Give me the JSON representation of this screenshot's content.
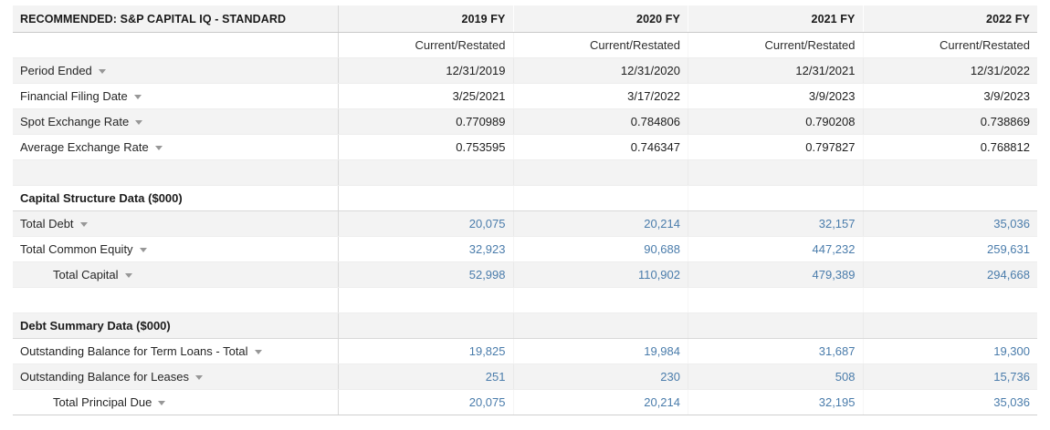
{
  "colors": {
    "value_blue": "#4a7cab",
    "stripe_gray": "#f3f3f3",
    "divider_gray": "#d9d9d9",
    "text_dark": "#1e1e1e"
  },
  "table": {
    "title": "RECOMMENDED: S&P CAPITAL IQ - STANDARD",
    "columns": [
      "2019 FY",
      "2020 FY",
      "2021 FY",
      "2022 FY"
    ],
    "subheader": "Current/Restated",
    "rows": [
      {
        "type": "data",
        "label": "Period Ended",
        "dropdown": true,
        "indent": false,
        "value_style": "dark",
        "values": [
          "12/31/2019",
          "12/31/2020",
          "12/31/2021",
          "12/31/2022"
        ]
      },
      {
        "type": "data",
        "label": "Financial Filing Date",
        "dropdown": true,
        "indent": false,
        "value_style": "dark",
        "values": [
          "3/25/2021",
          "3/17/2022",
          "3/9/2023",
          "3/9/2023"
        ]
      },
      {
        "type": "data",
        "label": "Spot Exchange Rate",
        "dropdown": true,
        "indent": false,
        "value_style": "dark",
        "values": [
          "0.770989",
          "0.784806",
          "0.790208",
          "0.738869"
        ]
      },
      {
        "type": "data",
        "label": "Average Exchange Rate",
        "dropdown": true,
        "indent": false,
        "value_style": "dark",
        "values": [
          "0.753595",
          "0.746347",
          "0.797827",
          "0.768812"
        ]
      },
      {
        "type": "spacer"
      },
      {
        "type": "section",
        "label": "Capital Structure Data ($000)"
      },
      {
        "type": "data",
        "label": "Total Debt",
        "dropdown": true,
        "indent": false,
        "value_style": "blue",
        "values": [
          "20,075",
          "20,214",
          "32,157",
          "35,036"
        ]
      },
      {
        "type": "data",
        "label": "Total Common Equity",
        "dropdown": true,
        "indent": false,
        "value_style": "blue",
        "values": [
          "32,923",
          "90,688",
          "447,232",
          "259,631"
        ]
      },
      {
        "type": "data",
        "label": "Total Capital",
        "dropdown": true,
        "indent": true,
        "value_style": "blue",
        "values": [
          "52,998",
          "110,902",
          "479,389",
          "294,668"
        ]
      },
      {
        "type": "spacer"
      },
      {
        "type": "section",
        "label": "Debt Summary Data ($000)"
      },
      {
        "type": "data",
        "label": "Outstanding Balance for Term Loans - Total",
        "dropdown": true,
        "indent": false,
        "value_style": "blue",
        "values": [
          "19,825",
          "19,984",
          "31,687",
          "19,300"
        ]
      },
      {
        "type": "data",
        "label": "Outstanding Balance for Leases",
        "dropdown": true,
        "indent": false,
        "value_style": "blue",
        "values": [
          "251",
          "230",
          "508",
          "15,736"
        ]
      },
      {
        "type": "data",
        "label": "Total Principal Due",
        "dropdown": true,
        "indent": true,
        "value_style": "blue",
        "values": [
          "20,075",
          "20,214",
          "32,195",
          "35,036"
        ]
      }
    ]
  }
}
